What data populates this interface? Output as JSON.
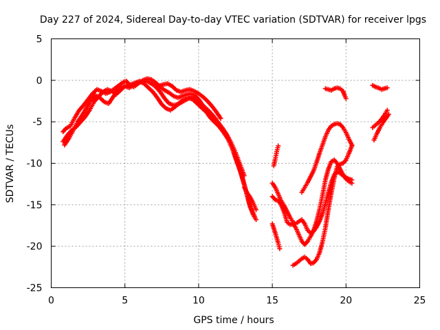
{
  "chart_data": {
    "type": "scatter",
    "title": "Day 227 of 2024, Sidereal Day-to-day VTEC variation (SDTVAR) for receiver lpgs",
    "xlabel": "GPS time / hours",
    "ylabel": "SDTVAR / TECUs",
    "xlim": [
      0,
      25
    ],
    "ylim": [
      -25,
      5
    ],
    "xticks": [
      0,
      5,
      10,
      15,
      20,
      25
    ],
    "yticks": [
      -25,
      -20,
      -15,
      -10,
      -5,
      0,
      5
    ],
    "grid": true,
    "marker": "plus",
    "color": "#ff0000",
    "series": [
      {
        "name": "track-1",
        "points": [
          [
            0.8,
            -6.2
          ],
          [
            1.0,
            -5.8
          ],
          [
            1.3,
            -5.5
          ],
          [
            1.6,
            -4.5
          ],
          [
            1.9,
            -3.6
          ],
          [
            2.2,
            -3.0
          ],
          [
            2.5,
            -2.3
          ],
          [
            2.8,
            -1.6
          ],
          [
            3.1,
            -1.1
          ],
          [
            3.4,
            -1.3
          ],
          [
            3.7,
            -1.6
          ],
          [
            4.0,
            -1.4
          ],
          [
            4.3,
            -1.0
          ],
          [
            4.6,
            -0.6
          ],
          [
            4.9,
            -0.2
          ],
          [
            5.1,
            -0.1
          ],
          [
            5.3,
            -0.5
          ],
          [
            5.6,
            -0.8
          ],
          [
            5.9,
            -0.4
          ],
          [
            6.2,
            0.0
          ],
          [
            6.5,
            0.2
          ],
          [
            6.8,
            0.1
          ],
          [
            7.1,
            -0.3
          ],
          [
            7.4,
            -0.8
          ],
          [
            7.7,
            -1.2
          ],
          [
            8.0,
            -1.5
          ],
          [
            8.3,
            -1.9
          ],
          [
            8.6,
            -2.1
          ],
          [
            8.9,
            -1.9
          ],
          [
            9.2,
            -1.7
          ],
          [
            9.5,
            -1.6
          ],
          [
            9.8,
            -1.9
          ],
          [
            10.1,
            -2.5
          ],
          [
            10.4,
            -3.4
          ],
          [
            10.7,
            -4.3
          ],
          [
            11.0,
            -4.9
          ],
          [
            11.3,
            -5.4
          ],
          [
            11.6,
            -5.9
          ],
          [
            11.9,
            -6.6
          ],
          [
            12.2,
            -7.7
          ],
          [
            12.5,
            -9.3
          ],
          [
            12.8,
            -10.8
          ],
          [
            13.1,
            -12.6
          ],
          [
            13.4,
            -14.6
          ],
          [
            13.7,
            -16.2
          ],
          [
            13.9,
            -16.8
          ]
        ]
      },
      {
        "name": "track-2",
        "points": [
          [
            0.9,
            -7.8
          ],
          [
            1.2,
            -7.0
          ],
          [
            1.5,
            -6.0
          ],
          [
            1.8,
            -5.0
          ],
          [
            2.1,
            -4.2
          ],
          [
            2.4,
            -3.3
          ],
          [
            2.7,
            -2.4
          ],
          [
            3.0,
            -1.8
          ],
          [
            3.3,
            -2.1
          ],
          [
            3.6,
            -2.6
          ],
          [
            3.9,
            -2.8
          ],
          [
            4.2,
            -2.0
          ],
          [
            4.5,
            -1.2
          ],
          [
            4.8,
            -0.8
          ],
          [
            5.1,
            -0.7
          ],
          [
            5.4,
            -0.5
          ],
          [
            5.7,
            -0.3
          ],
          [
            6.0,
            -0.1
          ],
          [
            6.3,
            -0.4
          ],
          [
            6.6,
            -0.9
          ],
          [
            6.9,
            -1.4
          ],
          [
            7.2,
            -2.1
          ],
          [
            7.5,
            -2.9
          ],
          [
            7.8,
            -3.4
          ],
          [
            8.1,
            -3.6
          ],
          [
            8.4,
            -3.2
          ],
          [
            8.7,
            -2.7
          ],
          [
            9.0,
            -2.3
          ],
          [
            9.3,
            -2.1
          ],
          [
            9.6,
            -2.3
          ],
          [
            9.9,
            -2.8
          ],
          [
            10.2,
            -3.3
          ],
          [
            10.5,
            -3.8
          ],
          [
            10.8,
            -4.3
          ],
          [
            11.1,
            -4.9
          ],
          [
            11.4,
            -5.6
          ],
          [
            11.7,
            -6.3
          ],
          [
            12.0,
            -7.1
          ],
          [
            12.3,
            -8.3
          ],
          [
            12.6,
            -9.8
          ],
          [
            12.9,
            -11.3
          ],
          [
            13.2,
            -13.2
          ],
          [
            13.5,
            -15.3
          ],
          [
            13.8,
            -16.4
          ]
        ]
      },
      {
        "name": "track-3",
        "points": [
          [
            0.8,
            -7.4
          ],
          [
            1.1,
            -6.6
          ],
          [
            1.4,
            -6.0
          ],
          [
            1.7,
            -5.6
          ],
          [
            2.0,
            -5.0
          ],
          [
            2.3,
            -4.4
          ],
          [
            2.6,
            -3.6
          ],
          [
            2.9,
            -2.6
          ],
          [
            3.2,
            -2.0
          ],
          [
            3.5,
            -1.4
          ],
          [
            3.8,
            -1.1
          ],
          [
            4.1,
            -1.3
          ],
          [
            4.4,
            -1.7
          ],
          [
            4.7,
            -1.2
          ],
          [
            5.0,
            -0.7
          ],
          [
            5.3,
            -0.9
          ],
          [
            5.6,
            -0.6
          ],
          [
            5.9,
            -0.3
          ],
          [
            6.2,
            -0.2
          ],
          [
            6.5,
            -0.1
          ],
          [
            6.8,
            -0.4
          ],
          [
            7.1,
            -0.8
          ],
          [
            7.4,
            -1.4
          ],
          [
            7.7,
            -2.2
          ],
          [
            8.0,
            -2.8
          ],
          [
            8.3,
            -3.0
          ],
          [
            8.6,
            -2.9
          ],
          [
            8.9,
            -2.6
          ],
          [
            9.2,
            -2.3
          ],
          [
            9.5,
            -2.0
          ],
          [
            9.8,
            -2.1
          ],
          [
            10.1,
            -2.7
          ],
          [
            10.4,
            -3.2
          ],
          [
            10.7,
            -3.7
          ],
          [
            11.0,
            -4.3
          ],
          [
            11.3,
            -5.0
          ],
          [
            11.6,
            -5.7
          ],
          [
            11.9,
            -6.5
          ],
          [
            12.2,
            -7.5
          ],
          [
            12.5,
            -8.7
          ],
          [
            12.8,
            -10.1
          ],
          [
            13.1,
            -11.5
          ]
        ]
      },
      {
        "name": "track-4",
        "points": [
          [
            7.3,
            -0.7
          ],
          [
            7.6,
            -0.5
          ],
          [
            7.9,
            -0.4
          ],
          [
            8.2,
            -0.7
          ],
          [
            8.5,
            -1.2
          ],
          [
            8.8,
            -1.4
          ],
          [
            9.1,
            -1.2
          ],
          [
            9.4,
            -1.1
          ],
          [
            9.7,
            -1.3
          ],
          [
            10.0,
            -1.6
          ],
          [
            10.3,
            -2.0
          ],
          [
            10.6,
            -2.5
          ],
          [
            10.9,
            -3.1
          ],
          [
            11.2,
            -3.8
          ],
          [
            11.5,
            -4.6
          ]
        ]
      },
      {
        "name": "track-5",
        "points": [
          [
            13.1,
            -12.9
          ],
          [
            13.3,
            -13.6
          ],
          [
            13.5,
            -14.1
          ],
          [
            13.7,
            -14.8
          ],
          [
            13.9,
            -15.6
          ]
        ]
      },
      {
        "name": "track-6",
        "points": [
          [
            15.1,
            -10.3
          ],
          [
            15.2,
            -9.5
          ],
          [
            15.3,
            -8.6
          ],
          [
            15.4,
            -7.9
          ]
        ]
      },
      {
        "name": "track-7",
        "points": [
          [
            15.0,
            -12.4
          ],
          [
            15.2,
            -12.9
          ],
          [
            15.4,
            -13.7
          ],
          [
            15.6,
            -14.5
          ],
          [
            15.8,
            -15.1
          ],
          [
            16.0,
            -15.8
          ],
          [
            16.2,
            -16.5
          ],
          [
            16.4,
            -17.1
          ],
          [
            16.6,
            -17.3
          ],
          [
            16.8,
            -17.0
          ],
          [
            17.0,
            -16.8
          ],
          [
            17.2,
            -17.3
          ],
          [
            17.4,
            -18.1
          ],
          [
            17.6,
            -18.4
          ],
          [
            17.8,
            -18.2
          ],
          [
            18.0,
            -17.7
          ],
          [
            18.2,
            -17.0
          ],
          [
            18.4,
            -16.1
          ],
          [
            18.6,
            -14.9
          ],
          [
            18.8,
            -13.5
          ],
          [
            19.0,
            -12.3
          ],
          [
            19.2,
            -11.4
          ],
          [
            19.4,
            -11.0
          ],
          [
            19.6,
            -11.2
          ],
          [
            19.8,
            -11.5
          ],
          [
            20.0,
            -11.7
          ],
          [
            20.2,
            -11.9
          ],
          [
            20.4,
            -12.0
          ]
        ]
      },
      {
        "name": "track-8",
        "points": [
          [
            15.0,
            -17.3
          ],
          [
            15.2,
            -18.4
          ],
          [
            15.4,
            -19.6
          ],
          [
            15.5,
            -20.3
          ]
        ]
      },
      {
        "name": "track-9",
        "points": [
          [
            15.0,
            -14.0
          ],
          [
            15.2,
            -14.4
          ],
          [
            15.4,
            -14.5
          ],
          [
            15.6,
            -15.0
          ],
          [
            15.8,
            -15.9
          ],
          [
            16.0,
            -17.1
          ],
          [
            16.2,
            -17.4
          ],
          [
            16.4,
            -17.3
          ],
          [
            16.6,
            -17.8
          ],
          [
            16.8,
            -18.6
          ],
          [
            17.0,
            -19.4
          ],
          [
            17.2,
            -19.8
          ],
          [
            17.4,
            -19.4
          ],
          [
            17.6,
            -18.8
          ],
          [
            17.8,
            -18.1
          ],
          [
            18.0,
            -17.0
          ],
          [
            18.2,
            -15.6
          ],
          [
            18.4,
            -13.9
          ],
          [
            18.6,
            -12.0
          ],
          [
            18.8,
            -10.7
          ],
          [
            19.0,
            -9.8
          ],
          [
            19.2,
            -9.6
          ],
          [
            19.4,
            -10.0
          ],
          [
            19.6,
            -10.7
          ],
          [
            19.8,
            -11.4
          ],
          [
            20.0,
            -11.9
          ],
          [
            20.2,
            -12.2
          ],
          [
            20.4,
            -12.4
          ]
        ]
      },
      {
        "name": "track-10",
        "points": [
          [
            16.4,
            -22.3
          ],
          [
            16.6,
            -22.1
          ],
          [
            16.8,
            -21.8
          ],
          [
            17.0,
            -21.5
          ],
          [
            17.2,
            -21.3
          ],
          [
            17.4,
            -21.6
          ],
          [
            17.6,
            -22.1
          ],
          [
            17.8,
            -22.0
          ],
          [
            18.0,
            -21.6
          ],
          [
            18.2,
            -20.8
          ],
          [
            18.4,
            -19.5
          ],
          [
            18.6,
            -17.8
          ],
          [
            18.8,
            -15.6
          ],
          [
            19.0,
            -13.6
          ],
          [
            19.2,
            -11.8
          ],
          [
            19.4,
            -10.4
          ],
          [
            19.6,
            -10.1
          ],
          [
            19.8,
            -10.0
          ],
          [
            20.0,
            -9.6
          ],
          [
            20.2,
            -8.8
          ],
          [
            20.4,
            -7.9
          ]
        ]
      },
      {
        "name": "track-11",
        "points": [
          [
            17.0,
            -13.5
          ],
          [
            17.2,
            -12.9
          ],
          [
            17.4,
            -12.3
          ],
          [
            17.6,
            -11.6
          ],
          [
            17.8,
            -10.9
          ],
          [
            18.0,
            -9.9
          ],
          [
            18.2,
            -8.8
          ],
          [
            18.4,
            -7.8
          ],
          [
            18.6,
            -6.8
          ],
          [
            18.8,
            -6.0
          ],
          [
            19.0,
            -5.5
          ],
          [
            19.2,
            -5.3
          ],
          [
            19.4,
            -5.2
          ],
          [
            19.6,
            -5.3
          ],
          [
            19.8,
            -5.7
          ],
          [
            20.0,
            -6.3
          ],
          [
            20.2,
            -7.1
          ],
          [
            20.4,
            -7.8
          ]
        ]
      },
      {
        "name": "track-12",
        "points": [
          [
            18.6,
            -1.0
          ],
          [
            18.8,
            -1.1
          ],
          [
            19.0,
            -1.2
          ],
          [
            19.2,
            -1.0
          ],
          [
            19.4,
            -0.9
          ],
          [
            19.6,
            -1.0
          ],
          [
            19.8,
            -1.3
          ],
          [
            19.9,
            -1.8
          ],
          [
            20.0,
            -2.2
          ]
        ]
      },
      {
        "name": "track-13",
        "points": [
          [
            21.8,
            -0.6
          ],
          [
            22.0,
            -0.8
          ],
          [
            22.2,
            -0.9
          ],
          [
            22.4,
            -1.1
          ],
          [
            22.6,
            -1.0
          ],
          [
            22.8,
            -0.9
          ]
        ]
      },
      {
        "name": "track-14",
        "points": [
          [
            21.8,
            -5.7
          ],
          [
            22.0,
            -5.4
          ],
          [
            22.2,
            -5.1
          ],
          [
            22.4,
            -4.7
          ],
          [
            22.6,
            -4.2
          ],
          [
            22.8,
            -3.6
          ]
        ]
      },
      {
        "name": "track-15",
        "points": [
          [
            21.9,
            -7.2
          ],
          [
            22.1,
            -6.4
          ],
          [
            22.3,
            -5.7
          ],
          [
            22.5,
            -5.1
          ],
          [
            22.7,
            -4.6
          ],
          [
            22.9,
            -4.1
          ]
        ]
      }
    ]
  }
}
